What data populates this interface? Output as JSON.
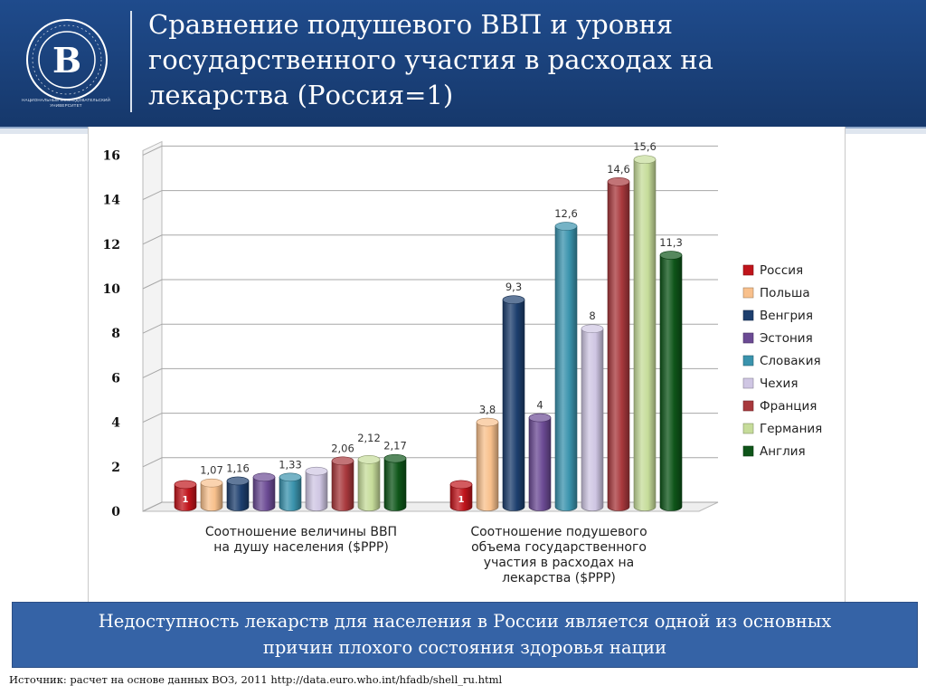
{
  "header": {
    "title_lines": [
      "Сравнение  подушевого ВВП и уровня",
      "государственного участия в расходах на",
      "лекарства (Россия=1)"
    ],
    "logo_letter": "В",
    "logo_sub": "НАЦИОНАЛЬНЫЙ ИССЛЕДОВАТЕЛЬСКИЙ УНИВЕРСИТЕТ"
  },
  "chart_data": {
    "type": "bar",
    "title": "",
    "xlabel": "",
    "ylabel": "",
    "ylim": [
      0,
      16
    ],
    "yticks": [
      0,
      2,
      4,
      6,
      8,
      10,
      12,
      14,
      16
    ],
    "grid": true,
    "legend_position": "right",
    "categories": [
      [
        "Соотношение величины ВВП",
        "на душу населения ($PPP)"
      ],
      [
        "Соотношение подушевого",
        "объема государственного",
        "участия в расходах на",
        "лекарства ($PPP)"
      ]
    ],
    "series": [
      {
        "name": "Россия",
        "color": "#c0141b",
        "values": [
          1,
          1
        ],
        "labels": [
          "1",
          "1"
        ]
      },
      {
        "name": "Польша",
        "color": "#f8c08c",
        "values": [
          1.07,
          3.8
        ],
        "labels": [
          "1,07",
          "3,8"
        ]
      },
      {
        "name": "Венгрия",
        "color": "#1d3f6e",
        "values": [
          1.16,
          9.3
        ],
        "labels": [
          "1,16",
          "9,3"
        ]
      },
      {
        "name": "Эстония",
        "color": "#6b4a94",
        "values": [
          1.33,
          4
        ],
        "labels": [
          "",
          "4"
        ]
      },
      {
        "name": "Словакия",
        "color": "#3a93ad",
        "values": [
          1.33,
          12.6
        ],
        "labels": [
          "1,33",
          "12,6"
        ]
      },
      {
        "name": "Чехия",
        "color": "#cfc6e3",
        "values": [
          1.6,
          8
        ],
        "labels": [
          "",
          "8"
        ]
      },
      {
        "name": "Франция",
        "color": "#a8383c",
        "values": [
          2.06,
          14.6
        ],
        "labels": [
          "2,06",
          "14,6"
        ]
      },
      {
        "name": "Германия",
        "color": "#c6dc9a",
        "values": [
          2.12,
          15.6
        ],
        "labels": [
          "2,12",
          "15,6"
        ]
      },
      {
        "name": "Англия",
        "color": "#0e5519",
        "values": [
          2.17,
          11.3
        ],
        "labels": [
          "2,17",
          "11,3"
        ]
      }
    ]
  },
  "footer": {
    "line1": "Недоступность лекарств для населения в России является одной из основных",
    "line2": "причин плохого  состояния здоровья нации"
  },
  "source": "Источник: расчет на основе данных ВОЗ, 2011 http://data.euro.who.int/hfadb/shell_ru.html"
}
